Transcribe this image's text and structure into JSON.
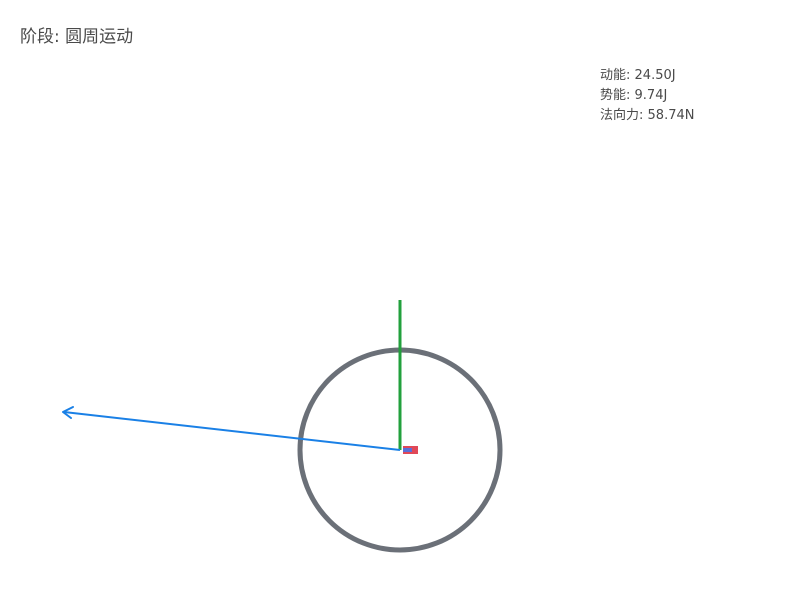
{
  "stage": {
    "label": "阶段",
    "separator": ": ",
    "value": "圆周运动"
  },
  "stats": [
    {
      "label": "动能",
      "separator": ": ",
      "value": "24.50J"
    },
    {
      "label": "势能",
      "separator": ": ",
      "value": "9.74J"
    },
    {
      "label": "法向力",
      "separator": ": ",
      "value": "58.74N"
    }
  ],
  "colors": {
    "track": "#6b7078",
    "normal_force_vector": "#22a03c",
    "velocity_vector": "#1a80e6",
    "object": "#e04858"
  }
}
